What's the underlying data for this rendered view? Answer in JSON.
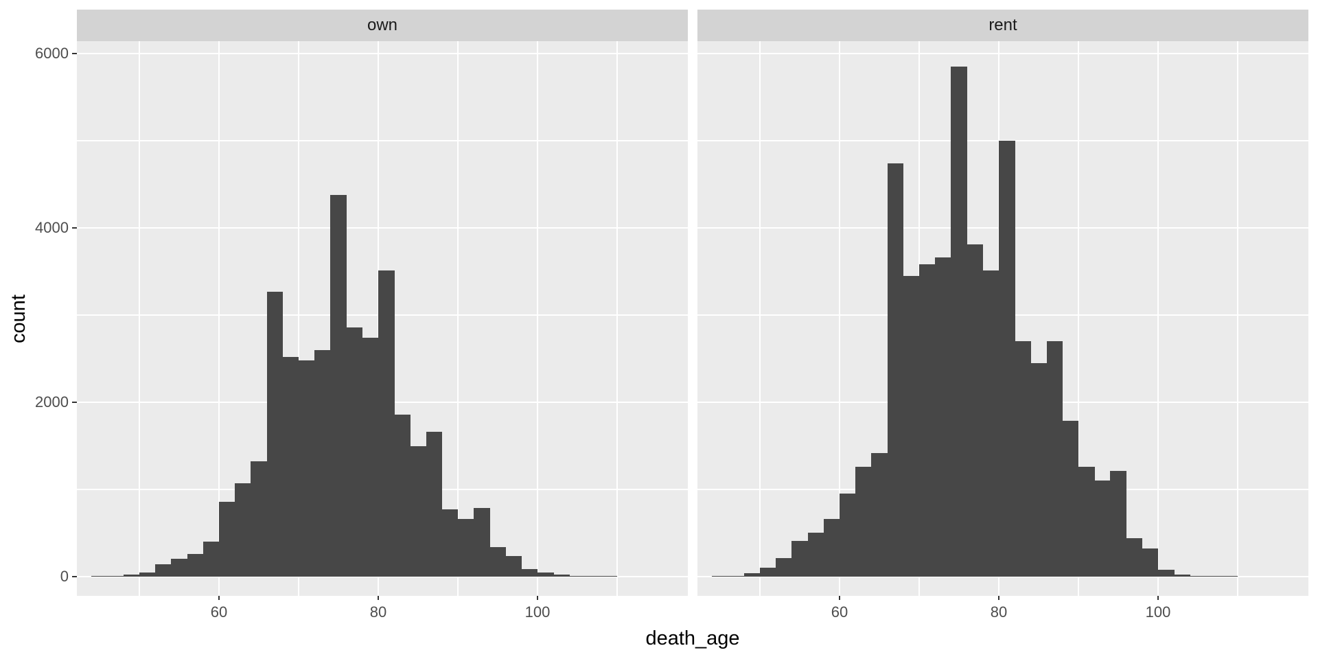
{
  "chart_data": {
    "type": "bar",
    "subtype": "faceted_histogram",
    "title": "",
    "xlabel": "death_age",
    "ylabel": "count",
    "legend": "none",
    "grid": true,
    "bin_width": 2,
    "bin_starts": [
      44,
      46,
      48,
      50,
      52,
      54,
      56,
      58,
      60,
      62,
      64,
      66,
      68,
      70,
      72,
      74,
      76,
      78,
      80,
      82,
      84,
      86,
      88,
      90,
      92,
      94,
      96,
      98,
      100,
      102,
      104,
      106,
      108
    ],
    "facets": [
      {
        "label": "own",
        "values": [
          4,
          10,
          25,
          50,
          140,
          205,
          260,
          400,
          860,
          1070,
          1320,
          3270,
          2520,
          2480,
          2600,
          4380,
          2860,
          2740,
          3510,
          1860,
          1500,
          1660,
          770,
          660,
          790,
          340,
          240,
          85,
          45,
          20,
          8,
          3,
          1
        ]
      },
      {
        "label": "rent",
        "values": [
          3,
          10,
          40,
          105,
          210,
          410,
          505,
          660,
          950,
          1260,
          1420,
          4740,
          3450,
          3580,
          3660,
          5850,
          3810,
          3510,
          5000,
          2700,
          2450,
          2700,
          1790,
          1260,
          1100,
          1210,
          440,
          320,
          75,
          25,
          10,
          4,
          2
        ]
      }
    ],
    "x_major_ticks": [
      60,
      80,
      100
    ],
    "x_minor_ticks": [
      50,
      70,
      90,
      110
    ],
    "y_major_ticks": [
      0,
      2000,
      4000,
      6000
    ],
    "y_minor_ticks": [
      1000,
      3000,
      5000
    ],
    "xlim": [
      42.2,
      118.9
    ],
    "ylim": [
      -290,
      6160
    ]
  },
  "colors": {
    "bar_fill": "#474747",
    "panel_bg": "#ebebeb",
    "strip_bg": "#d3d3d3",
    "gridline": "#ffffff",
    "tick_mark": "#333333",
    "tick_label": "#4d4d4d",
    "axis_title": "#000000",
    "strip_text": "#1a1a1a",
    "background": "#ffffff"
  }
}
